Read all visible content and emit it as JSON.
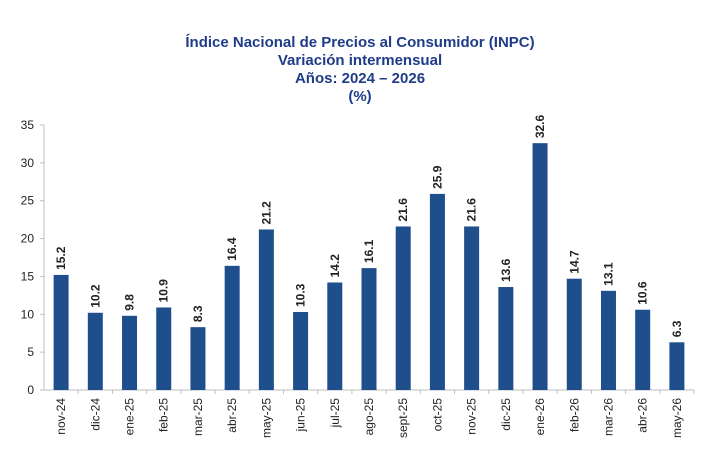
{
  "chart_data": {
    "type": "bar",
    "title": "Índice Nacional de Precios al Consumidor (INPC)",
    "subtitle": "Variación intermensual",
    "years": "Años: 2024 – 2026",
    "unit": "(%)",
    "xlabel": "",
    "ylabel": "",
    "ylim": [
      0,
      35
    ],
    "yticks": [
      0,
      5,
      10,
      15,
      20,
      25,
      30,
      35
    ],
    "categories": [
      "nov-24",
      "dic-24",
      "ene-25",
      "feb-25",
      "mar-25",
      "abr-25",
      "may-25",
      "jun-25",
      "jul-25",
      "ago-25",
      "sept-25",
      "oct-25",
      "nov-25",
      "dic-25",
      "ene-26",
      "feb-26",
      "mar-26",
      "abr-26",
      "may-26"
    ],
    "values": [
      15.2,
      10.2,
      9.8,
      10.9,
      8.3,
      16.4,
      21.2,
      10.3,
      14.2,
      16.1,
      21.6,
      25.9,
      21.6,
      13.6,
      32.6,
      14.7,
      13.1,
      10.6,
      6.3
    ],
    "data_labels": [
      "15.2",
      "10.2",
      "9.8",
      "10.9",
      "8.3",
      "16.4",
      "21.2",
      "10.3",
      "14.2",
      "16.1",
      "21.6",
      "25.9",
      "21.6",
      "13.6",
      "32.6",
      "14.7",
      "13.1",
      "10.6",
      "6.3"
    ],
    "grid": false,
    "legend": "none",
    "colors": {
      "bar": "#1f4e8c",
      "title": "#1f3c88",
      "text": "#222222",
      "axis": "#bfbfbf"
    }
  }
}
